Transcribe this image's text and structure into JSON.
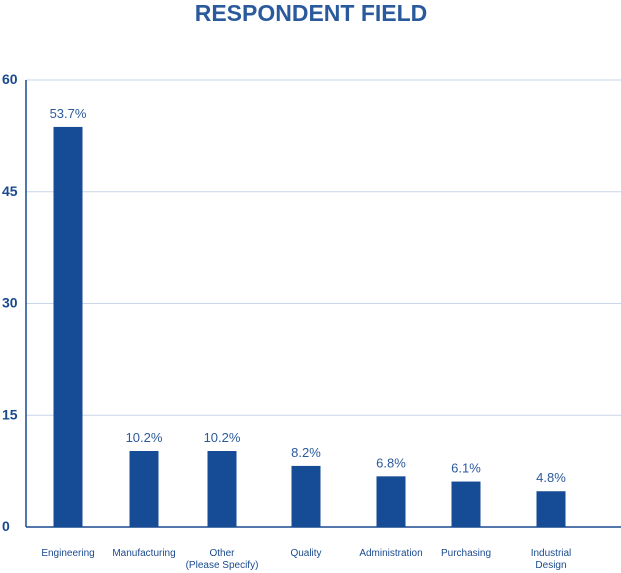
{
  "chart_data": {
    "type": "bar",
    "title": "RESPONDENT FIELD",
    "categories": [
      [
        "Engineering"
      ],
      [
        "Manufacturing"
      ],
      [
        "Other",
        "(Please Specify)"
      ],
      [
        "Quality"
      ],
      [
        "Administration"
      ],
      [
        "Purchasing"
      ],
      [
        "Industrial",
        "Design"
      ]
    ],
    "values": [
      53.7,
      10.2,
      10.2,
      8.2,
      6.8,
      6.1,
      4.8
    ],
    "data_labels": [
      "53.7%",
      "10.2%",
      "10.2%",
      "8.2%",
      "6.8%",
      "6.1%",
      "4.8%"
    ],
    "yticks": [
      0,
      15,
      30,
      45,
      60
    ],
    "ylim": [
      0,
      60
    ],
    "grid": true,
    "xlabel": "",
    "ylabel": "",
    "colors": {
      "bar": "#164b95",
      "grid": "#c9d6e8",
      "axis": "#1a4a8e",
      "text": "#1a4a8e"
    }
  }
}
